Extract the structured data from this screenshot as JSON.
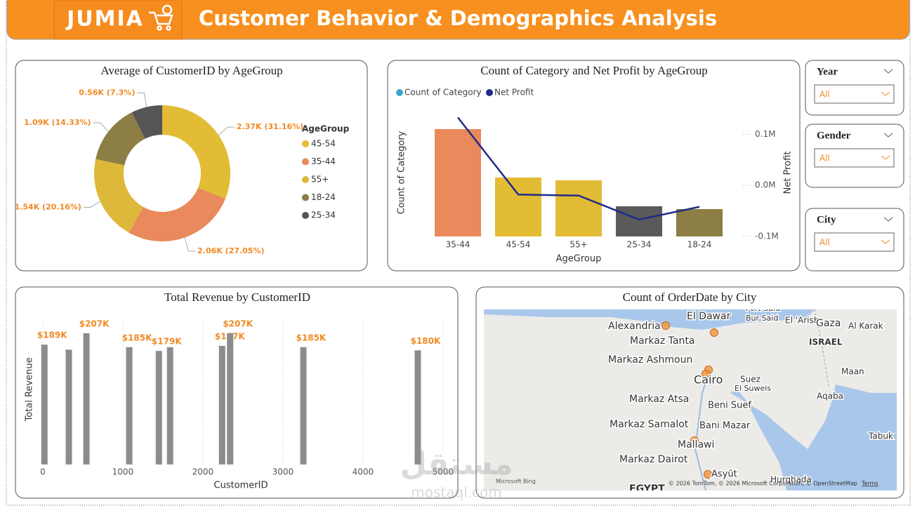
{
  "header": {
    "logo": "JUMIA",
    "title": "Customer Behavior & Demographics Analysis"
  },
  "chart_data": [
    {
      "type": "pie",
      "donut": true,
      "title": "Average of CustomerID by AgeGroup",
      "legend_title": "AgeGroup",
      "categories": [
        "45-54",
        "35-44",
        "55+",
        "18-24",
        "25-34"
      ],
      "values": [
        2370,
        2060,
        1540,
        1090,
        560
      ],
      "value_labels": [
        "2.37K (31.16%)",
        "2.06K (27.05%)",
        "1.54K (20.16%)",
        "1.09K (14.33%)",
        "0.56K (7.3%)"
      ],
      "colors": [
        "#E2BC35",
        "#E9895C",
        "#DDB83A",
        "#8C7E45",
        "#555555"
      ]
    },
    {
      "type": "bar_line",
      "title": "Count of Category and Net Profit by AgeGroup",
      "categories": [
        "35-44",
        "45-54",
        "55+",
        "25-34",
        "18-24"
      ],
      "series": [
        {
          "name": "Count of Category",
          "color": "#3AA7C8",
          "colors": [
            "#E9895C",
            "#E2BC35",
            "#E2BC35",
            "#5A5A5A",
            "#8C7E45"
          ],
          "values": [
            153,
            84,
            80,
            43,
            39
          ]
        },
        {
          "name": "Net Profit",
          "color": "#1F2A8A",
          "axis": "y2",
          "values": [
            133000,
            -18000,
            -20000,
            -67000,
            -42000
          ]
        }
      ],
      "ylim": [
        0,
        182
      ],
      "y2lim": [
        -100000,
        150000
      ],
      "y2ticks": [
        {
          "value": 100000,
          "label": "0.1M"
        },
        {
          "value": 0,
          "label": "0.0M"
        },
        {
          "value": -100000,
          "label": "-0.1M"
        }
      ],
      "xlabel": "AgeGroup",
      "ylabel": "Count of Category",
      "y2label": "Net Profit"
    },
    {
      "type": "bar",
      "title": "Total Revenue by CustomerID",
      "x": [
        20,
        325,
        545,
        1080,
        1450,
        1590,
        2240,
        2340,
        3255,
        4685
      ],
      "values": [
        189000,
        181000,
        207000,
        185000,
        179000,
        185000,
        187000,
        207000,
        185000,
        180000
      ],
      "value_labels": [
        "$189K",
        null,
        "$207K",
        "$185K",
        "$179K",
        null,
        "$187K",
        "$207K",
        "$185K",
        "$180K"
      ],
      "color": "#8C8C8C",
      "xlim": [
        -140,
        5080
      ],
      "ylim": [
        0,
        229000
      ],
      "xticks": [
        0,
        1000,
        2000,
        3000,
        4000,
        5000
      ],
      "grid": true,
      "xlabel": "CustomerID",
      "ylabel": "Total Revenue"
    }
  ],
  "slicers": [
    {
      "label": "Year",
      "value": "All"
    },
    {
      "label": "Gender",
      "value": "All"
    },
    {
      "label": "City",
      "value": "All"
    }
  ],
  "map": {
    "title": "Count of OrderDate by City",
    "places": [
      "Port Said",
      "Bur Said",
      "El Dawar",
      "Alexandria",
      "El 'Arish",
      "Gaza",
      "Al Karak",
      "ISRAEL",
      "Markaz Tanta",
      "Markaz Ashmoun",
      "Cairo",
      "Suez",
      "El Suweis",
      "Maan",
      "Aqaba",
      "Beni Suef",
      "Markaz Atsa",
      "Markaz Samalot",
      "Bani Mazar",
      "Mallawi",
      "Tabuk",
      "Markaz Dairot",
      "Asyūt",
      "Hurghada",
      "EGYPT"
    ],
    "provider": "Microsoft Bing",
    "attribution": "© 2026 TomTom, © 2026 Microsoft Corporation, © OpenStreetMap",
    "terms": "Terms"
  },
  "watermark": {
    "arabic": "مستقل",
    "latin": "mostaql.com"
  }
}
